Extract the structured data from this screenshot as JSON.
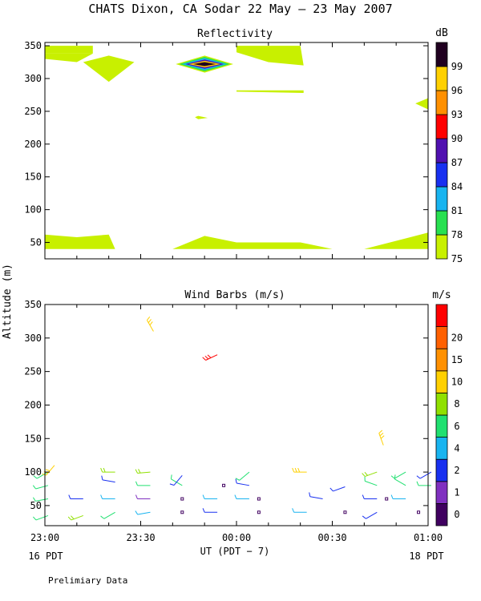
{
  "title": "CHATS Dixon, CA  Sodar  22 May — 23 May 2007",
  "y_axis_label": "Altitude (m)",
  "x_axis_label": "UT  (PDT − 7)",
  "start_date_label": "16 PDT",
  "end_date_label": "18 PDT",
  "footer_note": "Prelimiary Data",
  "chart_data": [
    {
      "type": "heatmap",
      "title": "Reflectivity",
      "colorbar_unit": "dB",
      "colorbar_ticks": [
        "75",
        "78",
        "81",
        "84",
        "87",
        "90",
        "93",
        "96",
        "99"
      ],
      "colorbar_colors": [
        "#c8f000",
        "#28e050",
        "#18b4f0",
        "#1830f0",
        "#5010b0",
        "#ff0000",
        "#ff9000",
        "#ffd000",
        "#200020"
      ],
      "x_ticks": [
        "23:00",
        "23:30",
        "00:00",
        "00:30",
        "01:00"
      ],
      "y_ticks": [
        50,
        100,
        150,
        200,
        250,
        300,
        350
      ],
      "ylim": [
        25,
        355
      ],
      "xlim_minutes": [
        0,
        120
      ],
      "regions": [
        {
          "level": 75,
          "points": [
            [
              0,
              338
            ],
            [
              15,
              338
            ],
            [
              15,
              350
            ],
            [
              0,
              350
            ]
          ]
        },
        {
          "level": 75,
          "points": [
            [
              0,
              330
            ],
            [
              10,
              325
            ],
            [
              15,
              338
            ],
            [
              0,
              338
            ]
          ]
        },
        {
          "level": 75,
          "points": [
            [
              12,
              325
            ],
            [
              20,
              335
            ],
            [
              28,
              325
            ],
            [
              20,
              295
            ]
          ]
        },
        {
          "level": 75,
          "points": [
            [
              60,
              350
            ],
            [
              80,
              350
            ],
            [
              81,
              320
            ],
            [
              70,
              325
            ],
            [
              60,
              340
            ]
          ]
        },
        {
          "level": 75,
          "points": [
            [
              60,
              282
            ],
            [
              81,
              282
            ],
            [
              81,
              278
            ],
            [
              60,
              280
            ]
          ]
        },
        {
          "level": 75,
          "points": [
            [
              48,
              243
            ],
            [
              51,
              240
            ],
            [
              48,
              238
            ],
            [
              47,
              241
            ]
          ]
        },
        {
          "level": 75,
          "points": [
            [
              116,
              262
            ],
            [
              120,
              270
            ],
            [
              120,
              253
            ]
          ]
        },
        {
          "level": 75,
          "points": [
            [
              0,
              62
            ],
            [
              10,
              58
            ],
            [
              20,
              62
            ],
            [
              22,
              40
            ],
            [
              0,
              40
            ]
          ]
        },
        {
          "level": 75,
          "points": [
            [
              40,
              40
            ],
            [
              50,
              60
            ],
            [
              60,
              50
            ],
            [
              80,
              50
            ],
            [
              90,
              40
            ]
          ]
        },
        {
          "level": 75,
          "points": [
            [
              100,
              40
            ],
            [
              120,
              65
            ],
            [
              120,
              40
            ]
          ]
        },
        {
          "level": 75,
          "points": [
            [
              41,
              322
            ],
            [
              50,
              335
            ],
            [
              59,
              322
            ],
            [
              50,
              309
            ]
          ]
        },
        {
          "level": 78,
          "points": [
            [
              42,
              322
            ],
            [
              50,
              333
            ],
            [
              58,
              322
            ],
            [
              50,
              311
            ]
          ]
        },
        {
          "level": 81,
          "points": [
            [
              43,
              322
            ],
            [
              50,
              331
            ],
            [
              57,
              322
            ],
            [
              50,
              313
            ]
          ]
        },
        {
          "level": 87,
          "points": [
            [
              44,
              322
            ],
            [
              50,
              329
            ],
            [
              56,
              322
            ],
            [
              50,
              315
            ]
          ]
        },
        {
          "level": 96,
          "points": [
            [
              45,
              322
            ],
            [
              50,
              327
            ],
            [
              55,
              322
            ],
            [
              50,
              317
            ]
          ]
        },
        {
          "level": 99,
          "points": [
            [
              46.5,
              322
            ],
            [
              50,
              325
            ],
            [
              53.5,
              322
            ],
            [
              50,
              319
            ]
          ]
        }
      ]
    },
    {
      "type": "scatter",
      "title": "Wind Barbs (m/s)",
      "colorbar_unit": "m/s",
      "colorbar_ticks": [
        "0",
        "1",
        "2",
        "4",
        "6",
        "8",
        "10",
        "15",
        "20"
      ],
      "colorbar_colors": [
        "#400060",
        "#8030c0",
        "#1830f0",
        "#18b4f0",
        "#20e070",
        "#90e000",
        "#ffd000",
        "#ff9000",
        "#ff6000",
        "#ff0000"
      ],
      "x_ticks": [
        "23:00",
        "23:30",
        "00:00",
        "00:30",
        "01:00"
      ],
      "y_ticks": [
        50,
        100,
        150,
        200,
        250,
        300,
        350
      ],
      "ylim": [
        20,
        350
      ],
      "xlim_minutes": [
        0,
        120
      ],
      "barbs": [
        {
          "t": 1,
          "z": 35,
          "speed": 7,
          "dir": 250
        },
        {
          "t": 1,
          "z": 60,
          "speed": 6,
          "dir": 260
        },
        {
          "t": 1,
          "z": 80,
          "speed": 6,
          "dir": 255
        },
        {
          "t": 1,
          "z": 100,
          "speed": 6,
          "dir": 240
        },
        {
          "t": 3,
          "z": 110,
          "speed": 14,
          "dir": 220
        },
        {
          "t": 12,
          "z": 35,
          "speed": 8,
          "dir": 250
        },
        {
          "t": 12,
          "z": 60,
          "speed": 3,
          "dir": 270
        },
        {
          "t": 22,
          "z": 40,
          "speed": 6,
          "dir": 240
        },
        {
          "t": 22,
          "z": 60,
          "speed": 4,
          "dir": 270
        },
        {
          "t": 22,
          "z": 85,
          "speed": 3,
          "dir": 280
        },
        {
          "t": 22,
          "z": 100,
          "speed": 8,
          "dir": 270
        },
        {
          "t": 33,
          "z": 40,
          "speed": 5,
          "dir": 260
        },
        {
          "t": 33,
          "z": 60,
          "speed": 1,
          "dir": 270
        },
        {
          "t": 33,
          "z": 80,
          "speed": 6,
          "dir": 270
        },
        {
          "t": 33,
          "z": 100,
          "speed": 8,
          "dir": 265
        },
        {
          "t": 34,
          "z": 310,
          "speed": 13,
          "dir": 330
        },
        {
          "t": 43,
          "z": 40,
          "speed": 0,
          "dir": 0
        },
        {
          "t": 43,
          "z": 60,
          "speed": 0,
          "dir": 0
        },
        {
          "t": 43,
          "z": 80,
          "speed": 6,
          "dir": 300
        },
        {
          "t": 43,
          "z": 95,
          "speed": 3,
          "dir": 220
        },
        {
          "t": 54,
          "z": 40,
          "speed": 3,
          "dir": 270
        },
        {
          "t": 54,
          "z": 60,
          "speed": 4,
          "dir": 270
        },
        {
          "t": 54,
          "z": 275,
          "speed": 20,
          "dir": 245
        },
        {
          "t": 56,
          "z": 80,
          "speed": 0,
          "dir": 0
        },
        {
          "t": 64,
          "z": 60,
          "speed": 4,
          "dir": 270
        },
        {
          "t": 64,
          "z": 80,
          "speed": 3,
          "dir": 280
        },
        {
          "t": 64,
          "z": 100,
          "speed": 6,
          "dir": 230
        },
        {
          "t": 67,
          "z": 40,
          "speed": 0,
          "dir": 0
        },
        {
          "t": 67,
          "z": 60,
          "speed": 0,
          "dir": 0
        },
        {
          "t": 82,
          "z": 40,
          "speed": 5,
          "dir": 270
        },
        {
          "t": 82,
          "z": 100,
          "speed": 13,
          "dir": 270
        },
        {
          "t": 87,
          "z": 60,
          "speed": 3,
          "dir": 280
        },
        {
          "t": 94,
          "z": 40,
          "speed": 0,
          "dir": 0
        },
        {
          "t": 94,
          "z": 78,
          "speed": 2,
          "dir": 250
        },
        {
          "t": 104,
          "z": 40,
          "speed": 2,
          "dir": 240
        },
        {
          "t": 104,
          "z": 60,
          "speed": 3,
          "dir": 270
        },
        {
          "t": 104,
          "z": 80,
          "speed": 6,
          "dir": 290
        },
        {
          "t": 104,
          "z": 100,
          "speed": 8,
          "dir": 250
        },
        {
          "t": 106,
          "z": 140,
          "speed": 13,
          "dir": 340
        },
        {
          "t": 107,
          "z": 60,
          "speed": 0,
          "dir": 0
        },
        {
          "t": 113,
          "z": 60,
          "speed": 4,
          "dir": 270
        },
        {
          "t": 113,
          "z": 80,
          "speed": 6,
          "dir": 300
        },
        {
          "t": 113,
          "z": 100,
          "speed": 6,
          "dir": 240
        },
        {
          "t": 117,
          "z": 40,
          "speed": 0,
          "dir": 0
        },
        {
          "t": 121,
          "z": 80,
          "speed": 6,
          "dir": 270
        },
        {
          "t": 121,
          "z": 100,
          "speed": 3,
          "dir": 240
        }
      ]
    }
  ]
}
